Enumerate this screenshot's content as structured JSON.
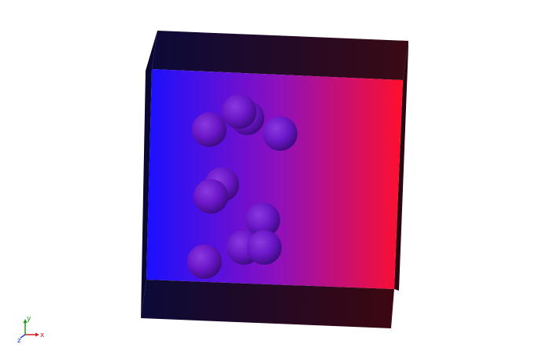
{
  "scene": {
    "type": "3d-render",
    "background_color": "#ffffff",
    "box": {
      "gradient_start_color": "#1a10ff",
      "gradient_end_color": "#ff0f2c",
      "top_face_start_color": "#0c0a3a",
      "top_face_end_color": "#3a0a14",
      "side_face_color": "#10082e"
    },
    "sphere_color": "#6a16c8",
    "sphere_count": 12
  },
  "axes": {
    "x_label": "x",
    "y_label": "y",
    "z_label": "z",
    "x_color": "#d82020",
    "y_color": "#18a018",
    "z_color": "#2040d8"
  }
}
